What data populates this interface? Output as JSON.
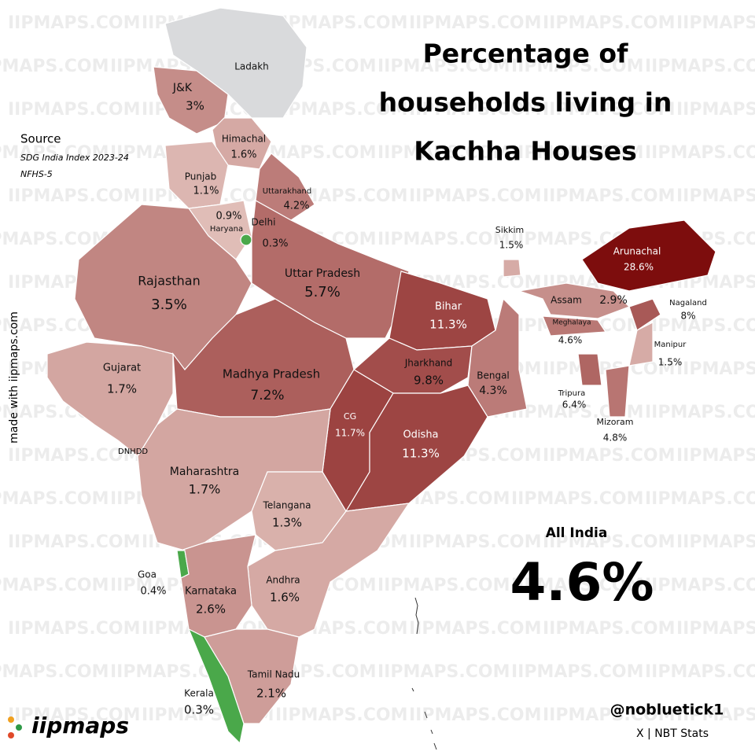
{
  "title": [
    "Percentage of",
    "households living in",
    "Kachha Houses"
  ],
  "source": {
    "heading": "Source",
    "lines": [
      "SDG India Index 2023-24",
      "NFHS-5"
    ]
  },
  "credit": "made with iipmaps.com",
  "watermark": "IIPMAPS.COM",
  "logo": "iipmaps",
  "annotation": "DNHDD",
  "all_india": {
    "label": "All India",
    "value": 4.6,
    "value_label": "4.6%"
  },
  "handle": "@nobluetick1",
  "handle_sub": "X | NBT Stats",
  "scale": {
    "low": "#f7e6df",
    "high": "#7d0c0c",
    "no_data": "#d9dadc"
  },
  "regions": [
    {
      "name": "Ladakh",
      "color": "#d9dadc"
    },
    {
      "name": "J&K",
      "value": 3,
      "value_label": "3%"
    },
    {
      "name": "Himachal",
      "value": 1.6,
      "value_label": "1.6%"
    },
    {
      "name": "Punjab",
      "value": 1.1,
      "value_label": "1.1%"
    },
    {
      "name": "Uttarakhand",
      "value": 4.2,
      "value_label": "4.2%"
    },
    {
      "name": "Haryana",
      "value": 0.9,
      "value_label": "0.9%"
    },
    {
      "name": "Delhi",
      "value": 0.3,
      "value_label": "0.3%",
      "color": "#4aa84a"
    },
    {
      "name": "Rajasthan",
      "value": 3.5,
      "value_label": "3.5%"
    },
    {
      "name": "Uttar Pradesh",
      "value": 5.7,
      "value_label": "5.7%"
    },
    {
      "name": "Gujarat",
      "value": 1.7,
      "value_label": "1.7%"
    },
    {
      "name": "Madhya Pradesh",
      "value": 7.2,
      "value_label": "7.2%"
    },
    {
      "name": "Bihar",
      "value": 11.3,
      "value_label": "11.3%"
    },
    {
      "name": "Jharkhand",
      "value": 9.8,
      "value_label": "9.8%"
    },
    {
      "name": "Bengal",
      "value": 4.3,
      "value_label": "4.3%"
    },
    {
      "name": "CG",
      "value": 11.7,
      "value_label": "11.7%"
    },
    {
      "name": "Odisha",
      "value": 11.3,
      "value_label": "11.3%"
    },
    {
      "name": "Maharashtra",
      "value": 1.7,
      "value_label": "1.7%"
    },
    {
      "name": "Telangana",
      "value": 1.3,
      "value_label": "1.3%"
    },
    {
      "name": "Andhra",
      "value": 1.6,
      "value_label": "1.6%"
    },
    {
      "name": "Goa",
      "value": 0.4,
      "value_label": "0.4%",
      "color": "#4aa84a"
    },
    {
      "name": "Karnataka",
      "value": 2.6,
      "value_label": "2.6%"
    },
    {
      "name": "Kerala",
      "value": 0.3,
      "value_label": "0.3%",
      "color": "#4aa84a"
    },
    {
      "name": "Tamil Nadu",
      "value": 2.1,
      "value_label": "2.1%"
    },
    {
      "name": "Sikkim",
      "value": 1.5,
      "value_label": "1.5%"
    },
    {
      "name": "Arunachal",
      "value": 28.6,
      "value_label": "28.6%"
    },
    {
      "name": "Assam",
      "value": 2.9,
      "value_label": "2.9%"
    },
    {
      "name": "Nagaland",
      "value": 8,
      "value_label": "8%"
    },
    {
      "name": "Meghalaya",
      "value": 4.6,
      "value_label": "4.6%"
    },
    {
      "name": "Manipur",
      "value": 1.5,
      "value_label": "1.5%"
    },
    {
      "name": "Tripura",
      "value": 6.4,
      "value_label": "6.4%"
    },
    {
      "name": "Mizoram",
      "value": 4.8,
      "value_label": "4.8%"
    }
  ]
}
